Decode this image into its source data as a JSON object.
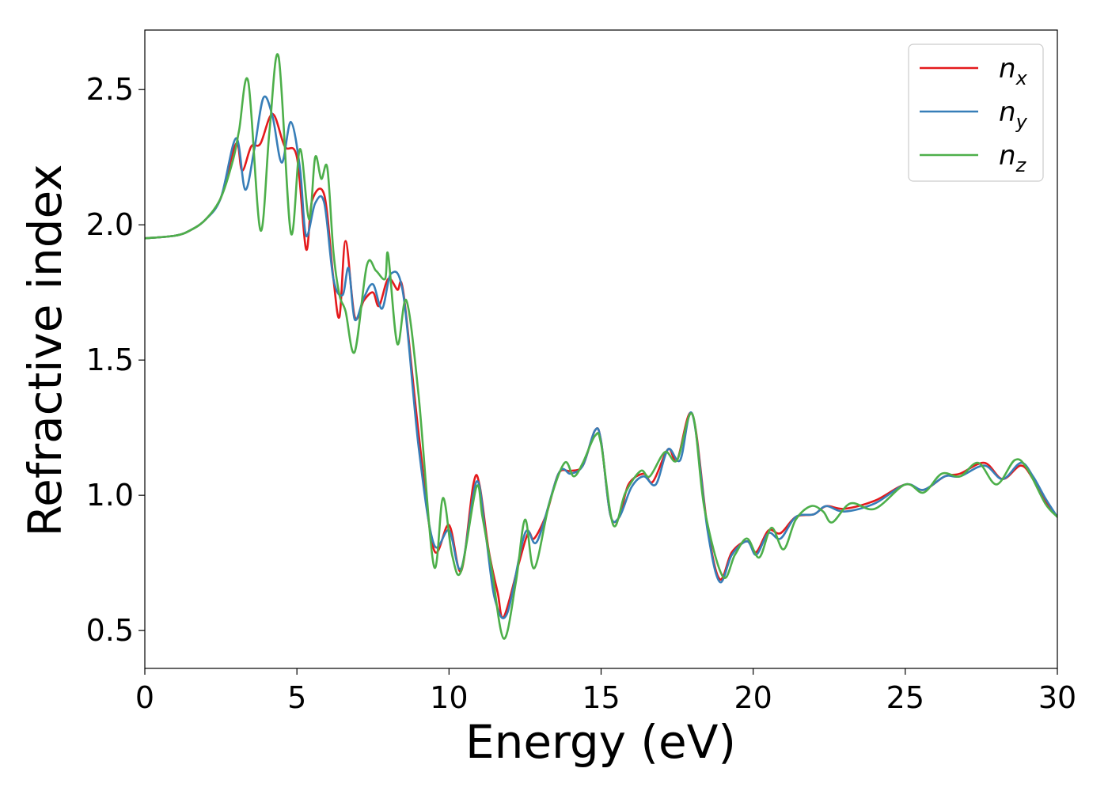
{
  "chart_data": {
    "type": "line",
    "title": "",
    "xlabel": "Energy (eV)",
    "ylabel": "Refractive index",
    "xlim": [
      0,
      30
    ],
    "ylim": [
      0.36,
      2.72
    ],
    "xticks": [
      0,
      5,
      10,
      15,
      20,
      25,
      30
    ],
    "yticks": [
      0.5,
      1.0,
      1.5,
      2.0,
      2.5
    ],
    "x_tick_labels": [
      "0",
      "5",
      "10",
      "15",
      "20",
      "25",
      "30"
    ],
    "y_tick_labels": [
      "0.5",
      "1.0",
      "1.5",
      "2.0",
      "2.5"
    ],
    "grid": false,
    "legend_position": "top-right",
    "series": [
      {
        "name": "n",
        "subscript": "x",
        "color": "#e41a1c",
        "points": [
          [
            0,
            1.95
          ],
          [
            1,
            1.96
          ],
          [
            1.5,
            1.98
          ],
          [
            2,
            2.02
          ],
          [
            2.5,
            2.1
          ],
          [
            3,
            2.3
          ],
          [
            3.2,
            2.2
          ],
          [
            3.5,
            2.29
          ],
          [
            3.8,
            2.3
          ],
          [
            4.2,
            2.41
          ],
          [
            4.6,
            2.29
          ],
          [
            5,
            2.25
          ],
          [
            5.3,
            1.91
          ],
          [
            5.5,
            2.09
          ],
          [
            5.9,
            2.11
          ],
          [
            6.2,
            1.8
          ],
          [
            6.4,
            1.66
          ],
          [
            6.6,
            1.94
          ],
          [
            6.9,
            1.66
          ],
          [
            7.2,
            1.72
          ],
          [
            7.5,
            1.75
          ],
          [
            7.7,
            1.7
          ],
          [
            8,
            1.8
          ],
          [
            8.3,
            1.76
          ],
          [
            8.5,
            1.75
          ],
          [
            9,
            1.23
          ],
          [
            9.5,
            0.8
          ],
          [
            10,
            0.89
          ],
          [
            10.4,
            0.72
          ],
          [
            10.8,
            1.04
          ],
          [
            11,
            1.04
          ],
          [
            11.3,
            0.8
          ],
          [
            11.6,
            0.64
          ],
          [
            11.8,
            0.55
          ],
          [
            12.3,
            0.75
          ],
          [
            12.6,
            0.86
          ],
          [
            12.8,
            0.84
          ],
          [
            13.2,
            0.93
          ],
          [
            13.6,
            1.08
          ],
          [
            14,
            1.09
          ],
          [
            14.4,
            1.11
          ],
          [
            14.8,
            1.24
          ],
          [
            15,
            1.2
          ],
          [
            15.3,
            0.93
          ],
          [
            15.6,
            0.92
          ],
          [
            15.9,
            1.04
          ],
          [
            16.4,
            1.08
          ],
          [
            16.7,
            1.05
          ],
          [
            17.2,
            1.17
          ],
          [
            17.5,
            1.13
          ],
          [
            18,
            1.3
          ],
          [
            18.5,
            0.88
          ],
          [
            18.9,
            0.69
          ],
          [
            19.3,
            0.79
          ],
          [
            19.8,
            0.83
          ],
          [
            20.1,
            0.79
          ],
          [
            20.5,
            0.87
          ],
          [
            20.9,
            0.86
          ],
          [
            21.4,
            0.92
          ],
          [
            22,
            0.93
          ],
          [
            22.4,
            0.96
          ],
          [
            23,
            0.95
          ],
          [
            24,
            0.98
          ],
          [
            25,
            1.04
          ],
          [
            25.6,
            1.02
          ],
          [
            26.3,
            1.07
          ],
          [
            26.8,
            1.08
          ],
          [
            27.6,
            1.12
          ],
          [
            28.2,
            1.06
          ],
          [
            28.8,
            1.11
          ],
          [
            29.2,
            1.06
          ],
          [
            29.6,
            0.98
          ],
          [
            30,
            0.92
          ]
        ]
      },
      {
        "name": "n",
        "subscript": "y",
        "color": "#377eb8",
        "points": [
          [
            0,
            1.95
          ],
          [
            1,
            1.96
          ],
          [
            1.5,
            1.98
          ],
          [
            2,
            2.02
          ],
          [
            2.5,
            2.1
          ],
          [
            3,
            2.32
          ],
          [
            3.3,
            2.13
          ],
          [
            3.6,
            2.28
          ],
          [
            3.9,
            2.47
          ],
          [
            4.2,
            2.4
          ],
          [
            4.5,
            2.23
          ],
          [
            4.8,
            2.38
          ],
          [
            5.1,
            2.21
          ],
          [
            5.3,
            1.96
          ],
          [
            5.6,
            2.08
          ],
          [
            5.9,
            2.08
          ],
          [
            6.2,
            1.8
          ],
          [
            6.5,
            1.74
          ],
          [
            6.7,
            1.84
          ],
          [
            6.9,
            1.65
          ],
          [
            7.2,
            1.73
          ],
          [
            7.5,
            1.78
          ],
          [
            7.8,
            1.69
          ],
          [
            8.1,
            1.82
          ],
          [
            8.5,
            1.74
          ],
          [
            9,
            1.18
          ],
          [
            9.5,
            0.82
          ],
          [
            10,
            0.87
          ],
          [
            10.4,
            0.73
          ],
          [
            10.9,
            1.05
          ],
          [
            11.2,
            0.86
          ],
          [
            11.5,
            0.62
          ],
          [
            11.9,
            0.56
          ],
          [
            12.5,
            0.86
          ],
          [
            12.9,
            0.83
          ],
          [
            13.6,
            1.08
          ],
          [
            14,
            1.08
          ],
          [
            14.4,
            1.11
          ],
          [
            14.8,
            1.24
          ],
          [
            15,
            1.2
          ],
          [
            15.3,
            0.93
          ],
          [
            15.6,
            0.92
          ],
          [
            16,
            1.03
          ],
          [
            16.4,
            1.07
          ],
          [
            16.8,
            1.04
          ],
          [
            17.2,
            1.17
          ],
          [
            17.6,
            1.13
          ],
          [
            18,
            1.3
          ],
          [
            18.5,
            0.87
          ],
          [
            18.9,
            0.68
          ],
          [
            19.3,
            0.78
          ],
          [
            19.8,
            0.83
          ],
          [
            20.1,
            0.78
          ],
          [
            20.5,
            0.86
          ],
          [
            20.9,
            0.84
          ],
          [
            21.4,
            0.92
          ],
          [
            22,
            0.93
          ],
          [
            22.4,
            0.96
          ],
          [
            23,
            0.94
          ],
          [
            24,
            0.97
          ],
          [
            25,
            1.04
          ],
          [
            25.6,
            1.02
          ],
          [
            26.3,
            1.07
          ],
          [
            26.8,
            1.07
          ],
          [
            27.6,
            1.11
          ],
          [
            28.2,
            1.06
          ],
          [
            28.8,
            1.12
          ],
          [
            29.2,
            1.07
          ],
          [
            29.6,
            0.99
          ],
          [
            30,
            0.92
          ]
        ]
      },
      {
        "name": "n",
        "subscript": "z",
        "color": "#4daf4a",
        "points": [
          [
            0,
            1.95
          ],
          [
            1,
            1.96
          ],
          [
            1.5,
            1.98
          ],
          [
            2,
            2.02
          ],
          [
            2.5,
            2.1
          ],
          [
            2.9,
            2.24
          ],
          [
            3.1,
            2.35
          ],
          [
            3.4,
            2.53
          ],
          [
            3.8,
            1.98
          ],
          [
            4.1,
            2.35
          ],
          [
            4.4,
            2.62
          ],
          [
            4.8,
            1.97
          ],
          [
            5.1,
            2.28
          ],
          [
            5.4,
            2.02
          ],
          [
            5.6,
            2.25
          ],
          [
            5.8,
            2.17
          ],
          [
            6,
            2.21
          ],
          [
            6.2,
            1.9
          ],
          [
            6.4,
            1.74
          ],
          [
            6.6,
            1.68
          ],
          [
            6.9,
            1.53
          ],
          [
            7.3,
            1.85
          ],
          [
            7.6,
            1.83
          ],
          [
            7.9,
            1.8
          ],
          [
            8,
            1.89
          ],
          [
            8.3,
            1.56
          ],
          [
            8.6,
            1.72
          ],
          [
            9,
            1.37
          ],
          [
            9.5,
            0.74
          ],
          [
            9.8,
            0.99
          ],
          [
            10.1,
            0.78
          ],
          [
            10.4,
            0.72
          ],
          [
            10.9,
            1.03
          ],
          [
            11.1,
            0.92
          ],
          [
            11.4,
            0.73
          ],
          [
            11.8,
            0.47
          ],
          [
            12.2,
            0.68
          ],
          [
            12.5,
            0.91
          ],
          [
            12.8,
            0.73
          ],
          [
            13.3,
            0.97
          ],
          [
            13.8,
            1.12
          ],
          [
            14.1,
            1.07
          ],
          [
            14.4,
            1.12
          ],
          [
            14.8,
            1.22
          ],
          [
            15,
            1.19
          ],
          [
            15.4,
            0.89
          ],
          [
            15.8,
            1.01
          ],
          [
            16.3,
            1.09
          ],
          [
            16.6,
            1.07
          ],
          [
            17.1,
            1.16
          ],
          [
            17.5,
            1.13
          ],
          [
            18,
            1.3
          ],
          [
            18.4,
            0.95
          ],
          [
            19,
            0.7
          ],
          [
            19.4,
            0.78
          ],
          [
            19.8,
            0.84
          ],
          [
            20.2,
            0.77
          ],
          [
            20.6,
            0.88
          ],
          [
            21,
            0.8
          ],
          [
            21.4,
            0.91
          ],
          [
            21.9,
            0.96
          ],
          [
            22.3,
            0.94
          ],
          [
            22.6,
            0.9
          ],
          [
            23.2,
            0.97
          ],
          [
            24,
            0.95
          ],
          [
            25,
            1.04
          ],
          [
            25.6,
            1.01
          ],
          [
            26.2,
            1.08
          ],
          [
            26.8,
            1.07
          ],
          [
            27.4,
            1.12
          ],
          [
            28,
            1.04
          ],
          [
            28.6,
            1.13
          ],
          [
            29,
            1.1
          ],
          [
            29.6,
            0.97
          ],
          [
            30,
            0.92
          ]
        ]
      }
    ]
  }
}
